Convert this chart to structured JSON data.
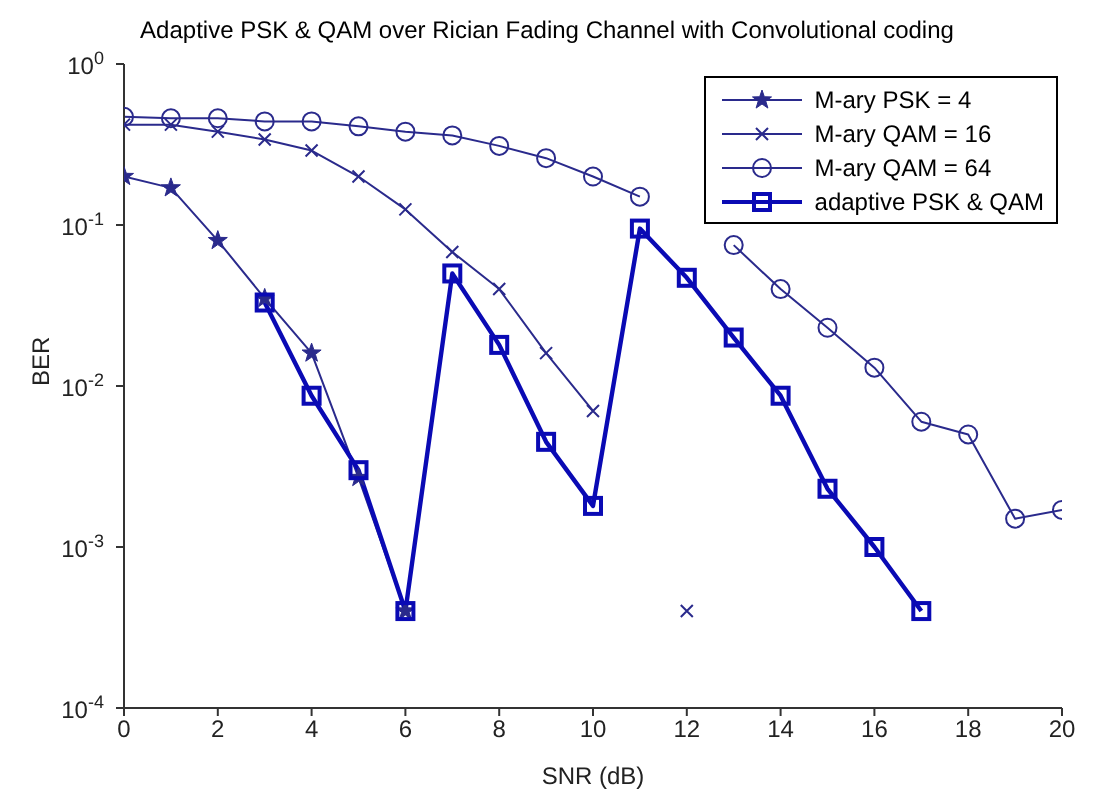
{
  "chart_data": {
    "type": "line",
    "title": "Adaptive PSK & QAM over Rician Fading Channel with Convolutional coding",
    "xlabel": "SNR (dB)",
    "ylabel": "BER",
    "log": "y",
    "x": [
      0,
      1,
      2,
      3,
      4,
      5,
      6,
      7,
      8,
      9,
      10,
      11,
      12,
      13,
      14,
      15,
      16,
      17,
      18,
      19,
      20
    ],
    "xlim": [
      0,
      20
    ],
    "xticks": [
      0,
      2,
      4,
      6,
      8,
      10,
      12,
      14,
      16,
      18,
      20
    ],
    "ylim": [
      0.0001,
      1
    ],
    "yticks": [
      {
        "value": 0.0001,
        "label": "10$^{-4}$"
      },
      {
        "value": 0.001,
        "label": "10$^{-3}$"
      },
      {
        "value": 0.01,
        "label": "10$^{-2}$"
      },
      {
        "value": 0.1,
        "label": "10$^{-1}$"
      },
      {
        "value": 1,
        "label": "10$^{0}$"
      }
    ],
    "grid": false,
    "legend": "top right",
    "series": [
      {
        "name": "M-ary PSK = 4",
        "color": "#2a2a8c",
        "marker": "star",
        "values": [
          0.2,
          0.17,
          0.08,
          0.035,
          0.016,
          0.0027,
          0.0004,
          null,
          null,
          null,
          null,
          null,
          null,
          null,
          null,
          null,
          null,
          null,
          null,
          null,
          null
        ]
      },
      {
        "name": "M-ary QAM = 16",
        "color": "#2a2a8c",
        "marker": "cross",
        "values": [
          0.42,
          0.42,
          0.38,
          0.34,
          0.29,
          0.2,
          0.125,
          0.068,
          0.04,
          0.016,
          0.007,
          null,
          0.0004,
          null,
          null,
          null,
          null,
          null,
          null,
          null,
          null
        ]
      },
      {
        "name": "M-ary QAM = 64",
        "color": "#2a2a8c",
        "marker": "circle",
        "values": [
          0.47,
          0.46,
          0.46,
          0.44,
          0.44,
          0.41,
          0.38,
          0.36,
          0.31,
          0.26,
          0.2,
          0.15,
          null,
          0.075,
          0.04,
          0.023,
          0.013,
          0.006,
          0.005,
          0.0015,
          0.0017
        ]
      },
      {
        "name": "adaptive PSK & QAM",
        "color": "#0a0ab4",
        "marker": "square",
        "values": [
          null,
          null,
          null,
          0.033,
          0.0087,
          0.003,
          0.0004,
          0.05,
          0.018,
          0.0045,
          0.0018,
          0.095,
          0.047,
          0.02,
          0.0087,
          0.0023,
          0.001,
          0.0004,
          null,
          null,
          null
        ]
      }
    ]
  }
}
